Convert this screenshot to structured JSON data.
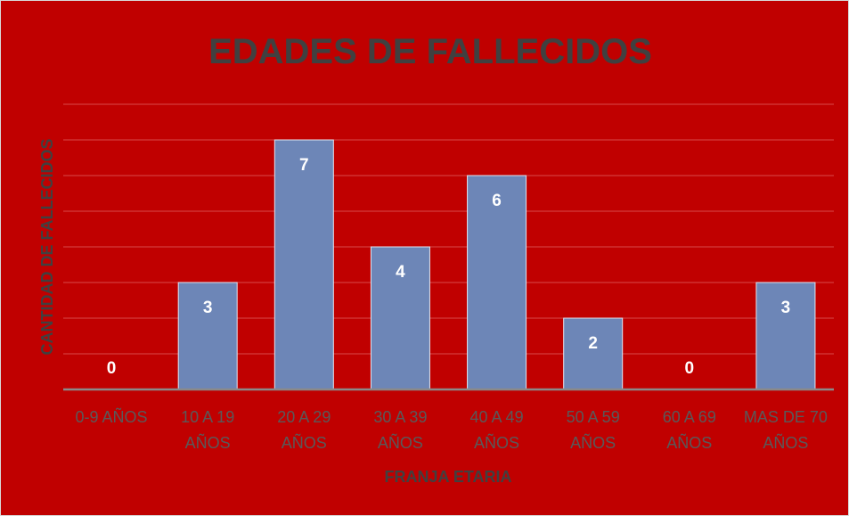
{
  "chart_data": {
    "type": "bar",
    "title": "EDADES DE FALLECIDOS",
    "xlabel": "FRANJA ETARIA",
    "ylabel": "CANTIDAD DE FALLECIDOS",
    "categories": [
      [
        "0-9 AÑOS"
      ],
      [
        "10 A 19",
        "AÑOS"
      ],
      [
        "20 A 29",
        "AÑOS"
      ],
      [
        "30 A 39",
        "AÑOS"
      ],
      [
        "40 A 49",
        "AÑOS"
      ],
      [
        "50 A 59",
        "AÑOS"
      ],
      [
        "60 A 69",
        "AÑOS"
      ],
      [
        "MAS DE 70",
        "AÑOS"
      ]
    ],
    "values": [
      0,
      3,
      7,
      4,
      6,
      2,
      0,
      3
    ],
    "data_labels": [
      "0",
      "3",
      "7",
      "4",
      "6",
      "2",
      "0",
      "3"
    ],
    "ylim": [
      0,
      8
    ],
    "grid": true,
    "legend": "none",
    "colors": {
      "background": "#c00000",
      "bar": "#6d86b7",
      "bar_border": "#dfe6f2",
      "gridline": "#d94a4a",
      "axis_line": "#8a8a8a",
      "title": "#404040",
      "tick_label": "#595959",
      "data_label": "#ffffff"
    }
  }
}
